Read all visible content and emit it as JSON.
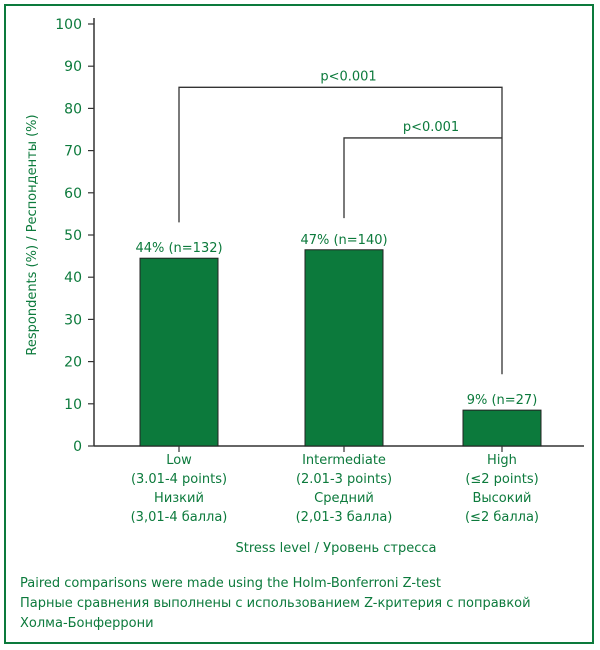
{
  "chart_data": {
    "type": "bar",
    "ylabel": "Respondents (%) / Респонденты (%)",
    "xlabel": "Stress level / Уровень стресса",
    "ylim": [
      0,
      100
    ],
    "yticks": [
      0,
      10,
      20,
      30,
      40,
      50,
      60,
      70,
      80,
      90,
      100
    ],
    "grid": false,
    "categories": [
      {
        "label_lines": [
          "Low",
          "(3.01-4 points)",
          "Низкий",
          "(3,01-4 балла)"
        ],
        "value": 44.5,
        "data_label": "44% (n=132)"
      },
      {
        "label_lines": [
          "Intermediate",
          "(2.01-3 points)",
          "Средний",
          "(2,01-3 балла)"
        ],
        "value": 46.5,
        "data_label": "47% (n=140)"
      },
      {
        "label_lines": [
          "High",
          "(≤2 points)",
          "Высокий",
          "(≤2 балла)"
        ],
        "value": 8.5,
        "data_label": "9% (n=27)"
      }
    ],
    "bar_color": "#0c7a3c",
    "axis_color": "#333333",
    "text_color": "#0c7a3c",
    "comparisons": [
      {
        "from": 0,
        "to": 2,
        "level": 85,
        "from_y": 53,
        "to_y": 17,
        "label": "p<0.001"
      },
      {
        "from": 1,
        "to": 2,
        "level": 73,
        "from_y": 54,
        "to_y": 73,
        "label": "p<0.001"
      }
    ]
  },
  "footnote": {
    "line1": "Paired comparisons were made using the Holm-Bonferroni Z-test",
    "line2": "Парные сравнения выполнены с использованием Z-критерия с поправкой",
    "line3": "Холма-Бонферрони"
  }
}
